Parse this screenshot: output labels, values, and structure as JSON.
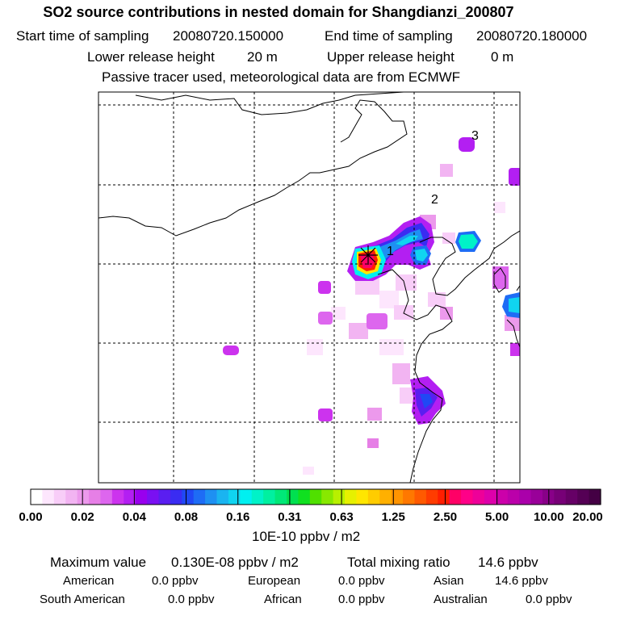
{
  "header": {
    "title": "SO2 source contributions in nested domain for Shangdianzi_200807",
    "start_label": "Start time of sampling",
    "start_value": "20080720.150000",
    "end_label": "End time of sampling",
    "end_value": "20080720.180000",
    "lower_label": "Lower release height",
    "lower_value": "20 m",
    "upper_label": "Upper release height",
    "upper_value": "0 m",
    "note": "Passive tracer used, meteorological data are from ECMWF"
  },
  "chart_data": {
    "type": "heatmap",
    "title": "SO2 source contributions in nested domain for Shangdianzi_200807",
    "station_label": "Shangdianzi",
    "site_markers": [
      "1",
      "2",
      "3"
    ],
    "colorbar": {
      "unit": "10E-10 ppbv / m2",
      "tick_labels": [
        "0.00",
        "0.02",
        "0.04",
        "0.08",
        "0.16",
        "0.31",
        "0.63",
        "1.25",
        "2.50",
        "5.00",
        "10.00",
        "20.00"
      ],
      "colors": [
        "#ffffff",
        "#fde6fd",
        "#f8cdf8",
        "#f2b4f2",
        "#ec99ec",
        "#e67fe6",
        "#dd66ee",
        "#cc33ee",
        "#b31ff2",
        "#9900ee",
        "#7a10f2",
        "#5a1ef0",
        "#3a2cf2",
        "#2048f5",
        "#1e6cf5",
        "#1e90f2",
        "#1ab4f0",
        "#10d4f0",
        "#00f0f0",
        "#00f2c8",
        "#00f0a0",
        "#00e878",
        "#00e050",
        "#10e020",
        "#50e000",
        "#88e800",
        "#b8f000",
        "#e6f000",
        "#ffe600",
        "#ffcc00",
        "#ffb000",
        "#ff9400",
        "#ff7800",
        "#ff5a00",
        "#ff3c00",
        "#ff1e00",
        "#ff0066",
        "#ff0088",
        "#ee0099",
        "#dd00aa",
        "#cc00aa",
        "#bb00aa",
        "#aa00aa",
        "#990099",
        "#880088",
        "#770077",
        "#660066",
        "#550055",
        "#440044"
      ]
    },
    "cells": [
      {
        "lon": 0,
        "lat": 0,
        "level": 0
      }
    ]
  },
  "footer": {
    "max_label": "Maximum value",
    "max_value": "0.130E-08 ppbv / m2",
    "total_label": "Total mixing ratio",
    "total_value": "14.6 ppbv",
    "regions": [
      {
        "name": "American",
        "value": "0.0 ppbv"
      },
      {
        "name": "European",
        "value": "0.0 ppbv"
      },
      {
        "name": "Asian",
        "value": "14.6 ppbv"
      },
      {
        "name": "South American",
        "value": "0.0 ppbv"
      },
      {
        "name": "African",
        "value": "0.0 ppbv"
      },
      {
        "name": "Australian",
        "value": "0.0 ppbv"
      }
    ]
  }
}
